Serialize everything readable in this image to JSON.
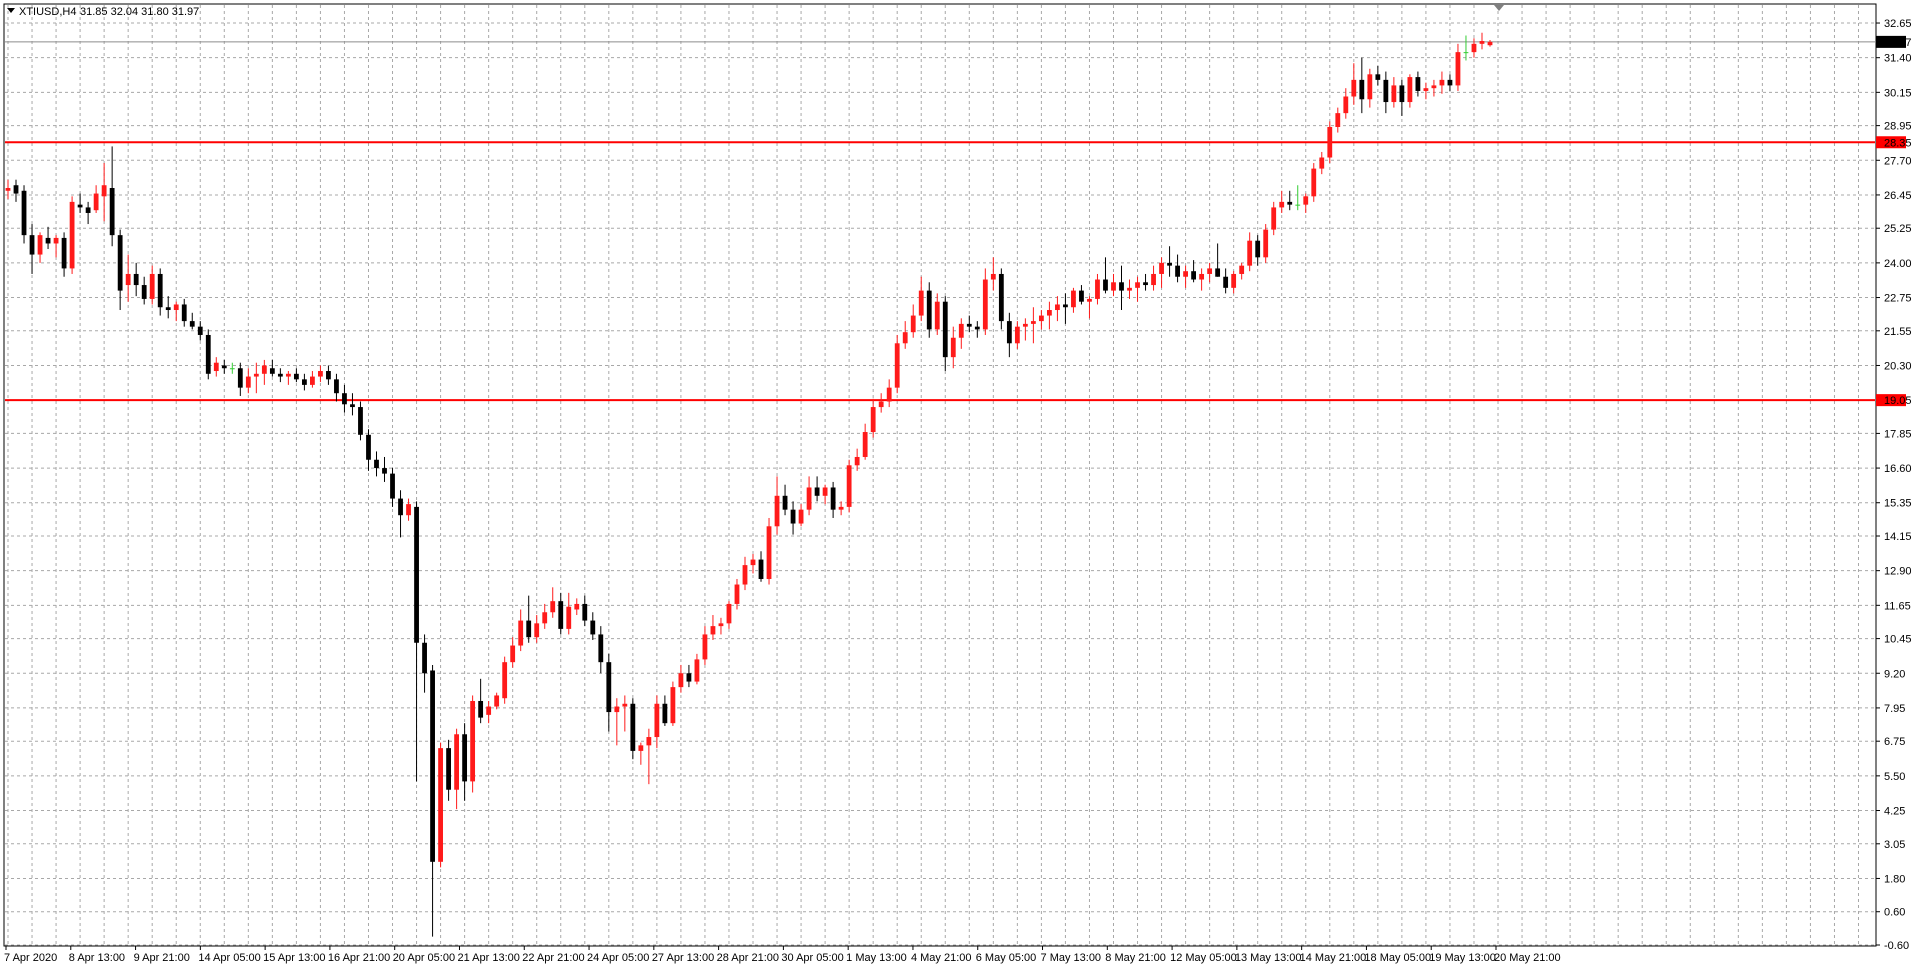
{
  "header": {
    "symbol_label": "XTIUSD,H4",
    "ohlc": "31.85 32.04 31.80 31.97"
  },
  "price_axis": {
    "ticks": [
      "32.65",
      "31.40",
      "30.15",
      "28.95",
      "27.70",
      "26.45",
      "25.25",
      "24.00",
      "22.75",
      "21.55",
      "20.30",
      "17.85",
      "16.60",
      "15.35",
      "14.15",
      "12.90",
      "11.65",
      "10.45",
      "9.20",
      "7.95",
      "6.75",
      "5.50",
      "4.25",
      "3.05",
      "1.80",
      "0.60",
      "-0.60"
    ],
    "current_price_label": "31.97",
    "level_labels": [
      "28.35",
      "19.05"
    ]
  },
  "time_axis": {
    "labels": [
      "7 Apr 2020",
      "8 Apr 13:00",
      "9 Apr 21:00",
      "14 Apr 05:00",
      "15 Apr 13:00",
      "16 Apr 21:00",
      "20 Apr 05:00",
      "21 Apr 13:00",
      "22 Apr 21:00",
      "24 Apr 05:00",
      "27 Apr 13:00",
      "28 Apr 21:00",
      "30 Apr 05:00",
      "1 May 13:00",
      "4 May 21:00",
      "6 May 05:00",
      "7 May 13:00",
      "8 May 21:00",
      "12 May 05:00",
      "13 May 13:00",
      "14 May 21:00",
      "18 May 05:00",
      "19 May 13:00",
      "20 May 21:00"
    ]
  },
  "colors": {
    "bull": "#ff1a1a",
    "bear": "#000000",
    "doji": "#33cc33",
    "level_line": "#ff0000",
    "grid": "#a8a8a8",
    "current_price_bg": "#000000"
  },
  "chart_data": {
    "type": "candlestick",
    "symbol": "XTIUSD",
    "timeframe": "H4",
    "ylim": [
      -0.6,
      33.3
    ],
    "grid": true,
    "horizontal_levels": [
      28.35,
      19.05
    ],
    "last_close": 31.97,
    "candles": [
      {
        "o": 26.6,
        "h": 27.0,
        "l": 26.3,
        "c": 26.7
      },
      {
        "o": 26.8,
        "h": 27.0,
        "l": 26.2,
        "c": 26.5
      },
      {
        "o": 26.6,
        "h": 26.8,
        "l": 24.7,
        "c": 25.0
      },
      {
        "o": 25.0,
        "h": 25.4,
        "l": 23.6,
        "c": 24.3
      },
      {
        "o": 24.3,
        "h": 25.1,
        "l": 24.0,
        "c": 25.0
      },
      {
        "o": 24.9,
        "h": 25.3,
        "l": 24.5,
        "c": 24.7
      },
      {
        "o": 24.7,
        "h": 25.0,
        "l": 24.2,
        "c": 24.9
      },
      {
        "o": 24.9,
        "h": 25.1,
        "l": 23.5,
        "c": 23.8
      },
      {
        "o": 23.8,
        "h": 26.4,
        "l": 23.6,
        "c": 26.2
      },
      {
        "o": 26.1,
        "h": 26.5,
        "l": 25.8,
        "c": 26.0
      },
      {
        "o": 26.0,
        "h": 26.2,
        "l": 25.4,
        "c": 25.8
      },
      {
        "o": 25.9,
        "h": 26.8,
        "l": 25.8,
        "c": 26.5
      },
      {
        "o": 26.4,
        "h": 27.6,
        "l": 25.5,
        "c": 26.8
      },
      {
        "o": 26.7,
        "h": 28.2,
        "l": 24.6,
        "c": 25.0
      },
      {
        "o": 25.0,
        "h": 25.2,
        "l": 22.3,
        "c": 23.0
      },
      {
        "o": 23.2,
        "h": 24.3,
        "l": 22.6,
        "c": 23.6
      },
      {
        "o": 23.6,
        "h": 24.0,
        "l": 22.8,
        "c": 23.2
      },
      {
        "o": 23.2,
        "h": 23.5,
        "l": 22.5,
        "c": 22.7
      },
      {
        "o": 22.7,
        "h": 23.9,
        "l": 22.5,
        "c": 23.6
      },
      {
        "o": 23.6,
        "h": 23.8,
        "l": 22.1,
        "c": 22.4
      },
      {
        "o": 22.4,
        "h": 22.8,
        "l": 22.0,
        "c": 22.3
      },
      {
        "o": 22.3,
        "h": 22.6,
        "l": 21.9,
        "c": 22.5
      },
      {
        "o": 22.5,
        "h": 22.7,
        "l": 21.7,
        "c": 21.9
      },
      {
        "o": 21.9,
        "h": 22.2,
        "l": 21.6,
        "c": 21.7
      },
      {
        "o": 21.7,
        "h": 21.9,
        "l": 21.2,
        "c": 21.4
      },
      {
        "o": 21.4,
        "h": 21.6,
        "l": 19.8,
        "c": 20.0
      },
      {
        "o": 20.1,
        "h": 20.6,
        "l": 19.9,
        "c": 20.4
      },
      {
        "o": 20.3,
        "h": 20.5,
        "l": 20.0,
        "c": 20.2
      },
      {
        "o": 20.2,
        "h": 20.4,
        "l": 20.0,
        "c": 20.2
      },
      {
        "o": 20.2,
        "h": 20.4,
        "l": 19.2,
        "c": 19.5
      },
      {
        "o": 19.5,
        "h": 20.2,
        "l": 19.3,
        "c": 19.9
      },
      {
        "o": 19.9,
        "h": 20.4,
        "l": 19.3,
        "c": 20.0
      },
      {
        "o": 20.0,
        "h": 20.5,
        "l": 19.6,
        "c": 20.3
      },
      {
        "o": 20.2,
        "h": 20.5,
        "l": 19.9,
        "c": 20.0
      },
      {
        "o": 20.0,
        "h": 20.2,
        "l": 19.7,
        "c": 19.9
      },
      {
        "o": 19.9,
        "h": 20.1,
        "l": 19.6,
        "c": 20.0
      },
      {
        "o": 20.0,
        "h": 20.2,
        "l": 19.7,
        "c": 19.8
      },
      {
        "o": 19.8,
        "h": 20.0,
        "l": 19.4,
        "c": 19.6
      },
      {
        "o": 19.6,
        "h": 20.1,
        "l": 19.5,
        "c": 19.9
      },
      {
        "o": 19.9,
        "h": 20.3,
        "l": 19.7,
        "c": 20.1
      },
      {
        "o": 20.1,
        "h": 20.3,
        "l": 19.6,
        "c": 19.8
      },
      {
        "o": 19.8,
        "h": 20.0,
        "l": 19.0,
        "c": 19.3
      },
      {
        "o": 19.3,
        "h": 19.6,
        "l": 18.6,
        "c": 18.9
      },
      {
        "o": 18.9,
        "h": 19.3,
        "l": 18.5,
        "c": 18.8
      },
      {
        "o": 18.8,
        "h": 19.0,
        "l": 17.6,
        "c": 17.8
      },
      {
        "o": 17.8,
        "h": 18.0,
        "l": 16.5,
        "c": 16.9
      },
      {
        "o": 16.9,
        "h": 17.2,
        "l": 16.3,
        "c": 16.6
      },
      {
        "o": 16.6,
        "h": 17.0,
        "l": 16.1,
        "c": 16.4
      },
      {
        "o": 16.4,
        "h": 16.6,
        "l": 15.2,
        "c": 15.5
      },
      {
        "o": 15.5,
        "h": 15.8,
        "l": 14.1,
        "c": 14.9
      },
      {
        "o": 14.9,
        "h": 15.5,
        "l": 14.7,
        "c": 15.3
      },
      {
        "o": 15.2,
        "h": 15.4,
        "l": 5.3,
        "c": 10.3
      },
      {
        "o": 10.3,
        "h": 10.6,
        "l": 8.5,
        "c": 9.2
      },
      {
        "o": 9.3,
        "h": 9.5,
        "l": -0.3,
        "c": 2.4
      },
      {
        "o": 2.4,
        "h": 6.7,
        "l": 2.2,
        "c": 6.5
      },
      {
        "o": 6.5,
        "h": 6.8,
        "l": 4.6,
        "c": 5.0
      },
      {
        "o": 5.0,
        "h": 7.2,
        "l": 4.3,
        "c": 7.0
      },
      {
        "o": 7.0,
        "h": 7.4,
        "l": 4.6,
        "c": 5.3
      },
      {
        "o": 5.3,
        "h": 8.4,
        "l": 4.9,
        "c": 8.2
      },
      {
        "o": 8.2,
        "h": 9.0,
        "l": 7.4,
        "c": 7.6
      },
      {
        "o": 7.7,
        "h": 8.2,
        "l": 7.4,
        "c": 8.0
      },
      {
        "o": 8.0,
        "h": 8.5,
        "l": 7.9,
        "c": 8.4
      },
      {
        "o": 8.3,
        "h": 9.8,
        "l": 8.1,
        "c": 9.6
      },
      {
        "o": 9.6,
        "h": 10.5,
        "l": 9.4,
        "c": 10.2
      },
      {
        "o": 10.2,
        "h": 11.5,
        "l": 10.0,
        "c": 11.1
      },
      {
        "o": 11.1,
        "h": 12.0,
        "l": 10.3,
        "c": 10.5
      },
      {
        "o": 10.5,
        "h": 11.3,
        "l": 10.3,
        "c": 11.0
      },
      {
        "o": 11.0,
        "h": 11.7,
        "l": 10.8,
        "c": 11.4
      },
      {
        "o": 11.4,
        "h": 12.3,
        "l": 11.2,
        "c": 11.8
      },
      {
        "o": 11.8,
        "h": 12.1,
        "l": 10.6,
        "c": 10.8
      },
      {
        "o": 10.8,
        "h": 12.1,
        "l": 10.6,
        "c": 11.6
      },
      {
        "o": 11.5,
        "h": 11.9,
        "l": 11.3,
        "c": 11.7
      },
      {
        "o": 11.7,
        "h": 12.0,
        "l": 10.9,
        "c": 11.1
      },
      {
        "o": 11.1,
        "h": 11.4,
        "l": 10.4,
        "c": 10.6
      },
      {
        "o": 10.6,
        "h": 10.9,
        "l": 9.2,
        "c": 9.6
      },
      {
        "o": 9.6,
        "h": 9.9,
        "l": 7.1,
        "c": 7.8
      },
      {
        "o": 7.8,
        "h": 8.3,
        "l": 6.6,
        "c": 8.0
      },
      {
        "o": 8.0,
        "h": 8.4,
        "l": 7.1,
        "c": 8.1
      },
      {
        "o": 8.1,
        "h": 8.3,
        "l": 6.1,
        "c": 6.4
      },
      {
        "o": 6.4,
        "h": 6.7,
        "l": 5.9,
        "c": 6.6
      },
      {
        "o": 6.6,
        "h": 7.2,
        "l": 5.2,
        "c": 6.9
      },
      {
        "o": 6.9,
        "h": 8.4,
        "l": 6.5,
        "c": 8.1
      },
      {
        "o": 8.1,
        "h": 8.4,
        "l": 7.3,
        "c": 7.4
      },
      {
        "o": 7.4,
        "h": 8.9,
        "l": 7.3,
        "c": 8.7
      },
      {
        "o": 8.7,
        "h": 9.5,
        "l": 8.5,
        "c": 9.2
      },
      {
        "o": 9.2,
        "h": 9.5,
        "l": 8.7,
        "c": 8.9
      },
      {
        "o": 8.9,
        "h": 9.9,
        "l": 8.8,
        "c": 9.7
      },
      {
        "o": 9.7,
        "h": 10.9,
        "l": 9.5,
        "c": 10.6
      },
      {
        "o": 10.6,
        "h": 11.3,
        "l": 10.4,
        "c": 10.9
      },
      {
        "o": 10.9,
        "h": 11.2,
        "l": 10.6,
        "c": 11.0
      },
      {
        "o": 11.0,
        "h": 11.8,
        "l": 10.8,
        "c": 11.7
      },
      {
        "o": 11.7,
        "h": 12.6,
        "l": 11.5,
        "c": 12.4
      },
      {
        "o": 12.4,
        "h": 13.4,
        "l": 12.2,
        "c": 13.1
      },
      {
        "o": 13.1,
        "h": 13.5,
        "l": 12.8,
        "c": 13.3
      },
      {
        "o": 13.3,
        "h": 13.6,
        "l": 12.5,
        "c": 12.6
      },
      {
        "o": 12.6,
        "h": 14.8,
        "l": 12.4,
        "c": 14.5
      },
      {
        "o": 14.5,
        "h": 16.3,
        "l": 14.2,
        "c": 15.6
      },
      {
        "o": 15.6,
        "h": 16.0,
        "l": 14.9,
        "c": 15.1
      },
      {
        "o": 15.1,
        "h": 15.4,
        "l": 14.2,
        "c": 14.6
      },
      {
        "o": 14.6,
        "h": 15.3,
        "l": 14.5,
        "c": 15.1
      },
      {
        "o": 15.1,
        "h": 16.3,
        "l": 14.9,
        "c": 15.9
      },
      {
        "o": 15.9,
        "h": 16.3,
        "l": 15.4,
        "c": 15.6
      },
      {
        "o": 15.6,
        "h": 16.0,
        "l": 15.3,
        "c": 15.9
      },
      {
        "o": 15.9,
        "h": 16.1,
        "l": 14.8,
        "c": 15.1
      },
      {
        "o": 15.1,
        "h": 15.4,
        "l": 14.9,
        "c": 15.2
      },
      {
        "o": 15.2,
        "h": 16.9,
        "l": 15.0,
        "c": 16.7
      },
      {
        "o": 16.7,
        "h": 17.3,
        "l": 16.5,
        "c": 17.0
      },
      {
        "o": 17.0,
        "h": 18.2,
        "l": 16.9,
        "c": 17.9
      },
      {
        "o": 17.9,
        "h": 19.1,
        "l": 17.7,
        "c": 18.8
      },
      {
        "o": 18.8,
        "h": 19.3,
        "l": 18.6,
        "c": 19.0
      },
      {
        "o": 19.0,
        "h": 19.8,
        "l": 18.8,
        "c": 19.5
      },
      {
        "o": 19.5,
        "h": 21.4,
        "l": 19.3,
        "c": 21.1
      },
      {
        "o": 21.1,
        "h": 21.9,
        "l": 20.9,
        "c": 21.5
      },
      {
        "o": 21.5,
        "h": 22.5,
        "l": 21.3,
        "c": 22.1
      },
      {
        "o": 22.1,
        "h": 23.5,
        "l": 21.9,
        "c": 23.0
      },
      {
        "o": 23.0,
        "h": 23.3,
        "l": 21.3,
        "c": 21.6
      },
      {
        "o": 21.6,
        "h": 22.9,
        "l": 21.4,
        "c": 22.6
      },
      {
        "o": 22.6,
        "h": 22.8,
        "l": 20.1,
        "c": 20.6
      },
      {
        "o": 20.6,
        "h": 21.7,
        "l": 20.2,
        "c": 21.3
      },
      {
        "o": 21.3,
        "h": 22.0,
        "l": 20.9,
        "c": 21.8
      },
      {
        "o": 21.8,
        "h": 22.1,
        "l": 21.5,
        "c": 21.7
      },
      {
        "o": 21.7,
        "h": 21.9,
        "l": 21.3,
        "c": 21.6
      },
      {
        "o": 21.6,
        "h": 23.8,
        "l": 21.4,
        "c": 23.4
      },
      {
        "o": 23.4,
        "h": 24.2,
        "l": 23.0,
        "c": 23.6
      },
      {
        "o": 23.6,
        "h": 23.8,
        "l": 21.6,
        "c": 21.9
      },
      {
        "o": 21.9,
        "h": 22.2,
        "l": 20.6,
        "c": 21.1
      },
      {
        "o": 21.1,
        "h": 21.9,
        "l": 20.9,
        "c": 21.7
      },
      {
        "o": 21.7,
        "h": 22.0,
        "l": 21.2,
        "c": 21.8
      },
      {
        "o": 21.8,
        "h": 22.4,
        "l": 21.1,
        "c": 21.9
      },
      {
        "o": 21.9,
        "h": 22.3,
        "l": 21.6,
        "c": 22.1
      },
      {
        "o": 22.1,
        "h": 22.6,
        "l": 21.6,
        "c": 22.3
      },
      {
        "o": 22.3,
        "h": 22.8,
        "l": 21.9,
        "c": 22.5
      },
      {
        "o": 22.5,
        "h": 22.9,
        "l": 21.8,
        "c": 22.4
      },
      {
        "o": 22.4,
        "h": 23.1,
        "l": 22.2,
        "c": 23.0
      },
      {
        "o": 23.0,
        "h": 23.2,
        "l": 22.5,
        "c": 22.6
      },
      {
        "o": 22.6,
        "h": 22.8,
        "l": 22.0,
        "c": 22.7
      },
      {
        "o": 22.7,
        "h": 23.6,
        "l": 22.5,
        "c": 23.4
      },
      {
        "o": 23.4,
        "h": 24.2,
        "l": 22.9,
        "c": 23.0
      },
      {
        "o": 23.0,
        "h": 23.6,
        "l": 22.8,
        "c": 23.3
      },
      {
        "o": 23.3,
        "h": 23.9,
        "l": 22.3,
        "c": 23.0
      },
      {
        "o": 23.0,
        "h": 23.4,
        "l": 22.7,
        "c": 23.1
      },
      {
        "o": 23.1,
        "h": 23.5,
        "l": 22.6,
        "c": 23.3
      },
      {
        "o": 23.3,
        "h": 23.6,
        "l": 23.0,
        "c": 23.2
      },
      {
        "o": 23.2,
        "h": 23.9,
        "l": 23.0,
        "c": 23.6
      },
      {
        "o": 23.6,
        "h": 24.2,
        "l": 23.1,
        "c": 24.0
      },
      {
        "o": 24.0,
        "h": 24.6,
        "l": 23.5,
        "c": 23.9
      },
      {
        "o": 23.9,
        "h": 24.3,
        "l": 23.3,
        "c": 23.5
      },
      {
        "o": 23.5,
        "h": 23.9,
        "l": 23.1,
        "c": 23.7
      },
      {
        "o": 23.7,
        "h": 24.1,
        "l": 23.3,
        "c": 23.4
      },
      {
        "o": 23.4,
        "h": 23.8,
        "l": 23.0,
        "c": 23.6
      },
      {
        "o": 23.6,
        "h": 24.0,
        "l": 23.3,
        "c": 23.8
      },
      {
        "o": 23.8,
        "h": 24.7,
        "l": 23.5,
        "c": 23.5
      },
      {
        "o": 23.5,
        "h": 23.8,
        "l": 22.9,
        "c": 23.1
      },
      {
        "o": 23.1,
        "h": 23.7,
        "l": 22.9,
        "c": 23.6
      },
      {
        "o": 23.6,
        "h": 24.0,
        "l": 23.4,
        "c": 23.9
      },
      {
        "o": 23.9,
        "h": 25.1,
        "l": 23.7,
        "c": 24.8
      },
      {
        "o": 24.8,
        "h": 25.0,
        "l": 23.9,
        "c": 24.2
      },
      {
        "o": 24.2,
        "h": 25.4,
        "l": 24.0,
        "c": 25.2
      },
      {
        "o": 25.2,
        "h": 26.2,
        "l": 25.0,
        "c": 26.0
      },
      {
        "o": 26.0,
        "h": 26.6,
        "l": 25.8,
        "c": 26.2
      },
      {
        "o": 26.2,
        "h": 26.6,
        "l": 25.9,
        "c": 26.1
      },
      {
        "o": 26.1,
        "h": 26.8,
        "l": 25.9,
        "c": 26.1
      },
      {
        "o": 26.1,
        "h": 26.5,
        "l": 25.8,
        "c": 26.4
      },
      {
        "o": 26.4,
        "h": 27.6,
        "l": 26.2,
        "c": 27.4
      },
      {
        "o": 27.4,
        "h": 28.0,
        "l": 27.2,
        "c": 27.8
      },
      {
        "o": 27.8,
        "h": 29.1,
        "l": 27.6,
        "c": 28.9
      },
      {
        "o": 28.9,
        "h": 29.6,
        "l": 28.7,
        "c": 29.4
      },
      {
        "o": 29.4,
        "h": 30.3,
        "l": 29.2,
        "c": 30.0
      },
      {
        "o": 30.0,
        "h": 31.2,
        "l": 29.7,
        "c": 30.6
      },
      {
        "o": 30.6,
        "h": 31.4,
        "l": 29.4,
        "c": 29.9
      },
      {
        "o": 29.9,
        "h": 31.0,
        "l": 29.6,
        "c": 30.8
      },
      {
        "o": 30.8,
        "h": 31.1,
        "l": 30.4,
        "c": 30.6
      },
      {
        "o": 30.6,
        "h": 30.9,
        "l": 29.4,
        "c": 29.8
      },
      {
        "o": 29.8,
        "h": 30.7,
        "l": 29.6,
        "c": 30.4
      },
      {
        "o": 30.4,
        "h": 30.6,
        "l": 29.3,
        "c": 29.8
      },
      {
        "o": 29.8,
        "h": 30.8,
        "l": 29.6,
        "c": 30.7
      },
      {
        "o": 30.7,
        "h": 30.9,
        "l": 30.0,
        "c": 30.2
      },
      {
        "o": 30.2,
        "h": 30.5,
        "l": 29.9,
        "c": 30.3
      },
      {
        "o": 30.3,
        "h": 30.6,
        "l": 30.0,
        "c": 30.4
      },
      {
        "o": 30.4,
        "h": 30.9,
        "l": 30.1,
        "c": 30.6
      },
      {
        "o": 30.6,
        "h": 30.8,
        "l": 30.2,
        "c": 30.4
      },
      {
        "o": 30.4,
        "h": 31.9,
        "l": 30.2,
        "c": 31.6
      },
      {
        "o": 31.6,
        "h": 32.2,
        "l": 31.3,
        "c": 31.6
      },
      {
        "o": 31.6,
        "h": 32.1,
        "l": 31.4,
        "c": 31.9
      },
      {
        "o": 31.9,
        "h": 32.3,
        "l": 31.7,
        "c": 32.0
      },
      {
        "o": 31.85,
        "h": 32.04,
        "l": 31.8,
        "c": 31.97
      }
    ]
  }
}
